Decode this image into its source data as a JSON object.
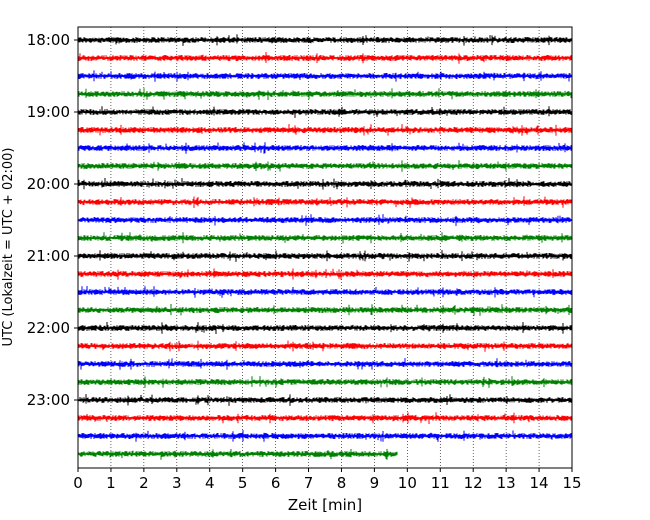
{
  "chart_data": {
    "type": "line",
    "title": "",
    "xlabel": "Zeit  [min]",
    "ylabel": "UTC (Lokalzeit = UTC + 02:00)",
    "xlim": [
      0,
      15
    ],
    "x_ticks": [
      "0",
      "1",
      "2",
      "3",
      "4",
      "5",
      "6",
      "7",
      "8",
      "9",
      "10",
      "11",
      "12",
      "13",
      "14",
      "15"
    ],
    "y_tick_labels": [
      "18:00",
      "19:00",
      "20:00",
      "21:00",
      "22:00",
      "23:00"
    ],
    "grid": "vertical dotted at each minute",
    "trace_interval_min": 15,
    "trace_colors": [
      "#000000",
      "#ff0000",
      "#0000ff",
      "#008000"
    ],
    "traces": [
      {
        "start": "18:00",
        "end_min": 15
      },
      {
        "start": "18:15",
        "end_min": 15
      },
      {
        "start": "18:30",
        "end_min": 15
      },
      {
        "start": "18:45",
        "end_min": 15
      },
      {
        "start": "19:00",
        "end_min": 15
      },
      {
        "start": "19:15",
        "end_min": 15
      },
      {
        "start": "19:30",
        "end_min": 15
      },
      {
        "start": "19:45",
        "end_min": 15
      },
      {
        "start": "20:00",
        "end_min": 15
      },
      {
        "start": "20:15",
        "end_min": 15
      },
      {
        "start": "20:30",
        "end_min": 15
      },
      {
        "start": "20:45",
        "end_min": 15
      },
      {
        "start": "21:00",
        "end_min": 15
      },
      {
        "start": "21:15",
        "end_min": 15
      },
      {
        "start": "21:30",
        "end_min": 15
      },
      {
        "start": "21:45",
        "end_min": 15
      },
      {
        "start": "22:00",
        "end_min": 15
      },
      {
        "start": "22:15",
        "end_min": 15
      },
      {
        "start": "22:30",
        "end_min": 15
      },
      {
        "start": "22:45",
        "end_min": 15
      },
      {
        "start": "23:00",
        "end_min": 15
      },
      {
        "start": "23:15",
        "end_min": 15
      },
      {
        "start": "23:30",
        "end_min": 15
      },
      {
        "start": "23:45",
        "end_min": 9.7
      }
    ]
  }
}
